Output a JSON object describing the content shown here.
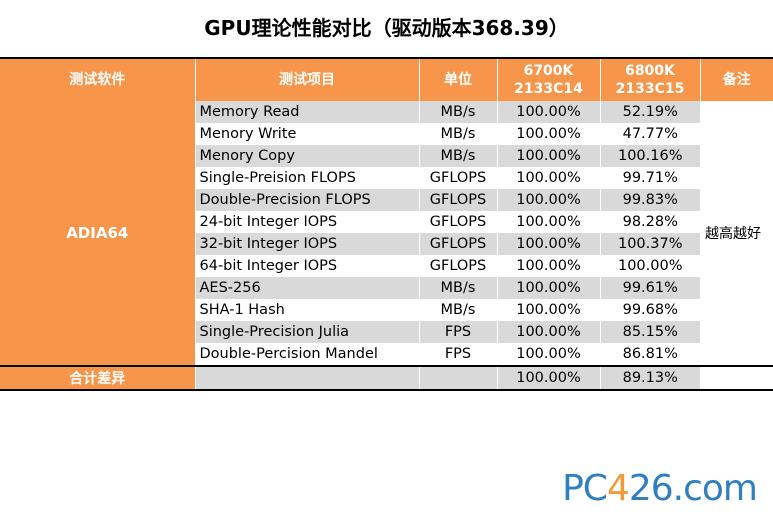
{
  "title": "GPU理论性能对比（驱动版本368.39）",
  "headers": {
    "software": "测试软件",
    "item": "测试项目",
    "unit": "单位",
    "col1_line1": "6700K",
    "col1_line2": "2133C14",
    "col2_line1": "6800K",
    "col2_line2": "2133C15",
    "note": "备注"
  },
  "software": "ADIA64",
  "note": "越高越好",
  "rows": [
    {
      "item": "Memory Read",
      "unit": "MB/s",
      "v1": "100.00%",
      "v2": "52.19%"
    },
    {
      "item": "Menory Write",
      "unit": "MB/s",
      "v1": "100.00%",
      "v2": "47.77%"
    },
    {
      "item": "Menory Copy",
      "unit": "MB/s",
      "v1": "100.00%",
      "v2": "100.16%"
    },
    {
      "item": "Single-Preision FLOPS",
      "unit": "GFLOPS",
      "v1": "100.00%",
      "v2": "99.71%"
    },
    {
      "item": "Double-Precision FLOPS",
      "unit": "GFLOPS",
      "v1": "100.00%",
      "v2": "99.83%"
    },
    {
      "item": "24-bit Integer IOPS",
      "unit": "GFLOPS",
      "v1": "100.00%",
      "v2": "98.28%"
    },
    {
      "item": "32-bit Integer IOPS",
      "unit": "GFLOPS",
      "v1": "100.00%",
      "v2": "100.37%"
    },
    {
      "item": "64-bit Integer IOPS",
      "unit": "GFLOPS",
      "v1": "100.00%",
      "v2": "100.00%"
    },
    {
      "item": "AES-256",
      "unit": "MB/s",
      "v1": "100.00%",
      "v2": "99.61%"
    },
    {
      "item": "SHA-1 Hash",
      "unit": "MB/s",
      "v1": "100.00%",
      "v2": "99.68%"
    },
    {
      "item": "Single-Precision Julia",
      "unit": "FPS",
      "v1": "100.00%",
      "v2": "85.15%"
    },
    {
      "item": "Double-Percision Mandel",
      "unit": "FPS",
      "v1": "100.00%",
      "v2": "86.81%"
    }
  ],
  "total": {
    "label": "合计差异",
    "v1": "100.00%",
    "v2": "89.13%"
  },
  "watermark": {
    "pre": "PC",
    "mid": "4",
    "post": "26.com"
  },
  "colors": {
    "header": "#f7964a",
    "stripe": "#d9d9d9",
    "logo_blue": "#2f7fc1",
    "logo_orange": "#f39a3b"
  }
}
